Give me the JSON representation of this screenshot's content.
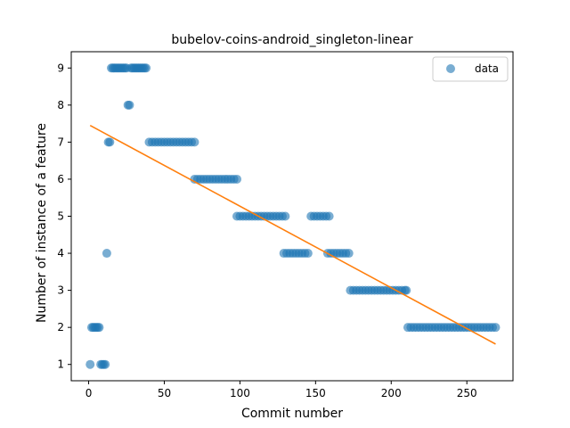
{
  "chart_data": {
    "type": "scatter",
    "title": "bubelov-coins-android_singleton-linear",
    "xlabel": "Commit number",
    "ylabel": "Number of instance of a feature",
    "xlim": [
      -11.5,
      280.5
    ],
    "ylim": [
      0.56,
      9.44
    ],
    "xticks": [
      0,
      50,
      100,
      150,
      200,
      250
    ],
    "yticks": [
      1,
      2,
      3,
      4,
      5,
      6,
      7,
      8,
      9
    ],
    "legend": {
      "position": "top-right",
      "entries": [
        "data"
      ]
    },
    "colors": {
      "scatter": "#1f77b4",
      "line": "#ff7f0e"
    },
    "series": [
      {
        "name": "data",
        "kind": "scatter",
        "points": [
          [
            1,
            1
          ],
          [
            2,
            2
          ],
          [
            3,
            2
          ],
          [
            4,
            2
          ],
          [
            5,
            2
          ],
          [
            6,
            2
          ],
          [
            7,
            2
          ],
          [
            8,
            1
          ],
          [
            9,
            1
          ],
          [
            10,
            1
          ],
          [
            11,
            1
          ],
          [
            12,
            4
          ],
          [
            13,
            7
          ],
          [
            14,
            7
          ],
          [
            15,
            9
          ],
          [
            16,
            9
          ],
          [
            17,
            9
          ],
          [
            18,
            9
          ],
          [
            19,
            9
          ],
          [
            20,
            9
          ],
          [
            21,
            9
          ],
          [
            22,
            9
          ],
          [
            23,
            9
          ],
          [
            24,
            9
          ],
          [
            25,
            9
          ],
          [
            26,
            8
          ],
          [
            27,
            8
          ],
          [
            28,
            9
          ],
          [
            29,
            9
          ],
          [
            30,
            9
          ],
          [
            31,
            9
          ],
          [
            32,
            9
          ],
          [
            33,
            9
          ],
          [
            34,
            9
          ],
          [
            35,
            9
          ],
          [
            36,
            9
          ],
          [
            37,
            9
          ],
          [
            38,
            9
          ],
          [
            40,
            7
          ],
          [
            42,
            7
          ],
          [
            44,
            7
          ],
          [
            46,
            7
          ],
          [
            48,
            7
          ],
          [
            50,
            7
          ],
          [
            52,
            7
          ],
          [
            54,
            7
          ],
          [
            56,
            7
          ],
          [
            58,
            7
          ],
          [
            60,
            7
          ],
          [
            62,
            7
          ],
          [
            64,
            7
          ],
          [
            66,
            7
          ],
          [
            68,
            7
          ],
          [
            70,
            7
          ],
          [
            70,
            6
          ],
          [
            72,
            6
          ],
          [
            74,
            6
          ],
          [
            76,
            6
          ],
          [
            78,
            6
          ],
          [
            80,
            6
          ],
          [
            82,
            6
          ],
          [
            84,
            6
          ],
          [
            86,
            6
          ],
          [
            88,
            6
          ],
          [
            90,
            6
          ],
          [
            92,
            6
          ],
          [
            94,
            6
          ],
          [
            96,
            6
          ],
          [
            98,
            6
          ],
          [
            98,
            5
          ],
          [
            100,
            5
          ],
          [
            102,
            5
          ],
          [
            104,
            5
          ],
          [
            106,
            5
          ],
          [
            108,
            5
          ],
          [
            110,
            5
          ],
          [
            112,
            5
          ],
          [
            114,
            5
          ],
          [
            116,
            5
          ],
          [
            118,
            5
          ],
          [
            120,
            5
          ],
          [
            122,
            5
          ],
          [
            124,
            5
          ],
          [
            126,
            5
          ],
          [
            128,
            5
          ],
          [
            130,
            5
          ],
          [
            129,
            4
          ],
          [
            131,
            4
          ],
          [
            133,
            4
          ],
          [
            135,
            4
          ],
          [
            137,
            4
          ],
          [
            139,
            4
          ],
          [
            141,
            4
          ],
          [
            143,
            4
          ],
          [
            145,
            4
          ],
          [
            147,
            5
          ],
          [
            149,
            5
          ],
          [
            151,
            5
          ],
          [
            153,
            5
          ],
          [
            155,
            5
          ],
          [
            157,
            5
          ],
          [
            159,
            5
          ],
          [
            158,
            4
          ],
          [
            160,
            4
          ],
          [
            162,
            4
          ],
          [
            164,
            4
          ],
          [
            166,
            4
          ],
          [
            168,
            4
          ],
          [
            170,
            4
          ],
          [
            172,
            4
          ],
          [
            173,
            3
          ],
          [
            175,
            3
          ],
          [
            177,
            3
          ],
          [
            179,
            3
          ],
          [
            181,
            3
          ],
          [
            183,
            3
          ],
          [
            185,
            3
          ],
          [
            187,
            3
          ],
          [
            189,
            3
          ],
          [
            191,
            3
          ],
          [
            193,
            3
          ],
          [
            195,
            3
          ],
          [
            197,
            3
          ],
          [
            199,
            3
          ],
          [
            201,
            3
          ],
          [
            203,
            3
          ],
          [
            205,
            3
          ],
          [
            207,
            3
          ],
          [
            209,
            3
          ],
          [
            210,
            3
          ],
          [
            211,
            2
          ],
          [
            213,
            2
          ],
          [
            215,
            2
          ],
          [
            217,
            2
          ],
          [
            219,
            2
          ],
          [
            221,
            2
          ],
          [
            223,
            2
          ],
          [
            225,
            2
          ],
          [
            227,
            2
          ],
          [
            229,
            2
          ],
          [
            231,
            2
          ],
          [
            233,
            2
          ],
          [
            235,
            2
          ],
          [
            237,
            2
          ],
          [
            239,
            2
          ],
          [
            241,
            2
          ],
          [
            243,
            2
          ],
          [
            245,
            2
          ],
          [
            247,
            2
          ],
          [
            249,
            2
          ],
          [
            251,
            2
          ],
          [
            253,
            2
          ],
          [
            255,
            2
          ],
          [
            257,
            2
          ],
          [
            259,
            2
          ],
          [
            261,
            2
          ],
          [
            263,
            2
          ],
          [
            265,
            2
          ],
          [
            267,
            2
          ],
          [
            269,
            2
          ]
        ]
      },
      {
        "kind": "line",
        "points": [
          [
            1,
            7.45
          ],
          [
            269,
            1.55
          ]
        ]
      }
    ]
  }
}
